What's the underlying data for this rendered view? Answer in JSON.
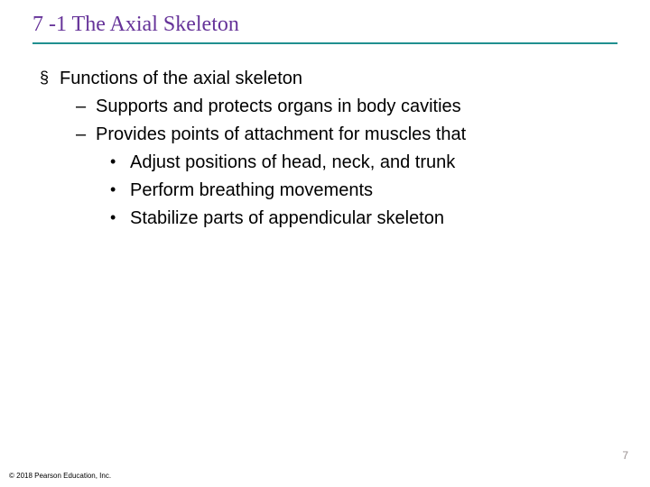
{
  "title": "7 -1 The Axial Skeleton",
  "heading": "Functions of the axial skeleton",
  "sub1": "Supports and protects organs in body cavities",
  "sub2": "Provides points of attachment for muscles that",
  "pt1": "Adjust positions of head, neck, and trunk",
  "pt2": "Perform breathing movements",
  "pt3": "Stabilize parts of appendicular skeleton",
  "pageNumber": "7",
  "copyright": "© 2018 Pearson Education, Inc.",
  "colors": {
    "title": "#663399",
    "underline": "#209090",
    "text": "#000000",
    "pageNum": "#999090",
    "background": "#ffffff"
  },
  "fonts": {
    "titleFamily": "Times New Roman",
    "bodyFamily": "Arial",
    "titleSize": 24,
    "bodySize": 20
  },
  "bullets": {
    "level1": "§",
    "level2": "–",
    "level3": "•"
  }
}
